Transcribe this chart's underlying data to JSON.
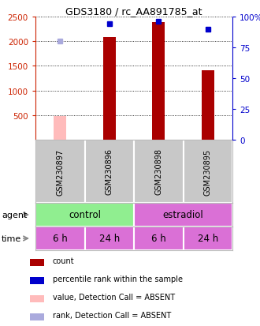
{
  "title": "GDS3180 / rc_AA891785_at",
  "samples": [
    "GSM230897",
    "GSM230896",
    "GSM230898",
    "GSM230895"
  ],
  "bar_values": [
    null,
    2080,
    2380,
    1410
  ],
  "absent_bar_values": [
    480,
    null,
    null,
    null
  ],
  "percentile_ranks": [
    null,
    94,
    96,
    90
  ],
  "absent_rank_values": [
    80,
    null,
    null,
    null
  ],
  "ylim_left": [
    0,
    2500
  ],
  "ylim_right": [
    0,
    100
  ],
  "yticks_left": [
    500,
    1000,
    1500,
    2000,
    2500
  ],
  "yticks_right": [
    0,
    25,
    50,
    75,
    100
  ],
  "agent_spans": [
    {
      "label": "control",
      "start": 0,
      "end": 2,
      "color": "#90ee90"
    },
    {
      "label": "estradiol",
      "start": 2,
      "end": 4,
      "color": "#da70d6"
    }
  ],
  "time_row": [
    "6 h",
    "24 h",
    "6 h",
    "24 h"
  ],
  "time_color": "#da70d6",
  "sample_bg_color": "#c8c8c8",
  "red_bar_color": "#aa0000",
  "absent_bar_color": "#ffbbbb",
  "rank_color": "#0000cc",
  "absent_rank_color": "#aaaadd",
  "left_tick_color": "#cc2200",
  "right_tick_color": "#0000cc",
  "bar_width": 0.25,
  "legend_items": [
    {
      "label": "count",
      "color": "#aa0000"
    },
    {
      "label": "percentile rank within the sample",
      "color": "#0000cc"
    },
    {
      "label": "value, Detection Call = ABSENT",
      "color": "#ffbbbb"
    },
    {
      "label": "rank, Detection Call = ABSENT",
      "color": "#aaaadd"
    }
  ]
}
